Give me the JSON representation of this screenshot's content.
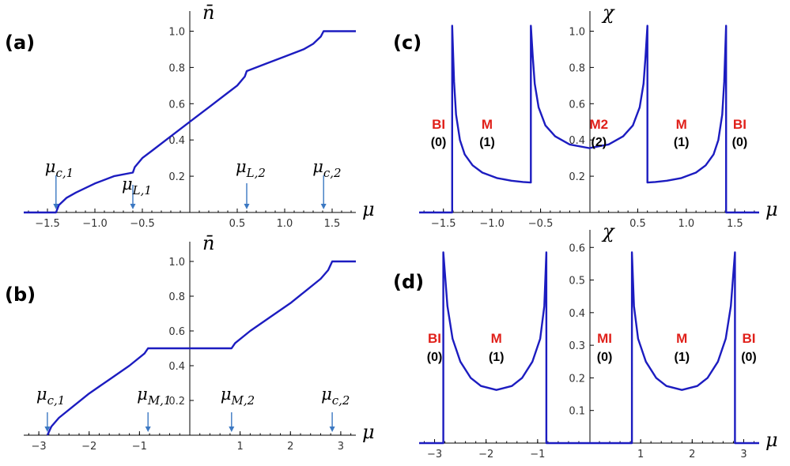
{
  "chart_data": [
    {
      "panel": "(a)",
      "type": "line",
      "xlabel": "μ",
      "ylabel": "n̄",
      "xlim": [
        -1.75,
        1.75
      ],
      "ylim": [
        0,
        1.05
      ],
      "xticks": [
        -1.5,
        -1.0,
        -0.5,
        0.5,
        1.0,
        1.5
      ],
      "xtick_labels": [
        "−1.5",
        "−1.0",
        "−0.5",
        "0.5",
        "1.0",
        "1.5"
      ],
      "yticks": [
        0.2,
        0.4,
        0.6,
        0.8,
        1.0
      ],
      "ytick_labels": [
        "0.2",
        "0.4",
        "0.6",
        "0.8",
        "1.0"
      ],
      "series": [
        {
          "name": "n̄",
          "x": [
            -1.75,
            -1.41,
            -1.38,
            -1.3,
            -1.2,
            -1.0,
            -0.8,
            -0.6,
            -0.58,
            -0.5,
            -0.4,
            -0.2,
            0.0,
            0.2,
            0.4,
            0.5,
            0.58,
            0.6,
            0.8,
            1.0,
            1.2,
            1.3,
            1.38,
            1.41,
            1.75
          ],
          "y": [
            0.0,
            0.0,
            0.04,
            0.08,
            0.11,
            0.16,
            0.2,
            0.22,
            0.25,
            0.3,
            0.34,
            0.42,
            0.5,
            0.58,
            0.66,
            0.7,
            0.75,
            0.78,
            0.82,
            0.86,
            0.9,
            0.93,
            0.97,
            1.0,
            1.0
          ]
        }
      ],
      "annotations": [
        {
          "label": "μ",
          "sub": "c,1",
          "x": -1.41
        },
        {
          "label": "μ",
          "sub": "L,1",
          "x": -0.6
        },
        {
          "label": "μ",
          "sub": "L,2",
          "x": 0.6
        },
        {
          "label": "μ",
          "sub": "c,2",
          "x": 1.41
        }
      ]
    },
    {
      "panel": "(b)",
      "type": "line",
      "xlabel": "μ",
      "ylabel": "n̄",
      "xlim": [
        -3.3,
        3.3
      ],
      "ylim": [
        0,
        1.05
      ],
      "xticks": [
        -3,
        -2,
        -1,
        1,
        2,
        3
      ],
      "xtick_labels": [
        "−3",
        "−2",
        "−1",
        "1",
        "2",
        "3"
      ],
      "yticks": [
        0.2,
        0.4,
        0.6,
        0.8,
        1.0
      ],
      "ytick_labels": [
        "0.2",
        "0.4",
        "0.6",
        "0.8",
        "1.0"
      ],
      "series": [
        {
          "name": "n̄",
          "x": [
            -2.83,
            -2.75,
            -2.6,
            -2.3,
            -2.0,
            -1.6,
            -1.2,
            -0.9,
            -0.83,
            0.83,
            0.9,
            1.2,
            1.6,
            2.0,
            2.3,
            2.6,
            2.75,
            2.83,
            3.3
          ],
          "y": [
            0.0,
            0.05,
            0.1,
            0.17,
            0.24,
            0.32,
            0.4,
            0.47,
            0.5,
            0.5,
            0.53,
            0.6,
            0.68,
            0.76,
            0.83,
            0.9,
            0.95,
            1.0,
            1.0
          ]
        }
      ],
      "annotations": [
        {
          "label": "μ",
          "sub": "c,1",
          "x": -2.83
        },
        {
          "label": "μ",
          "sub": "M,1",
          "x": -0.83
        },
        {
          "label": "μ",
          "sub": "M,2",
          "x": 0.83
        },
        {
          "label": "μ",
          "sub": "c,2",
          "x": 2.83
        }
      ]
    },
    {
      "panel": "(c)",
      "type": "line",
      "xlabel": "μ",
      "ylabel": "χ",
      "xlim": [
        -1.75,
        1.75
      ],
      "ylim": [
        0,
        1.05
      ],
      "xticks": [
        -1.5,
        -1.0,
        -0.5,
        0.5,
        1.0,
        1.5
      ],
      "xtick_labels": [
        "−1.5",
        "−1.0",
        "−0.5",
        "0.5",
        "1.0",
        "1.5"
      ],
      "yticks": [
        0.2,
        0.4,
        0.6,
        0.8,
        1.0
      ],
      "ytick_labels": [
        "0.2",
        "0.4",
        "0.6",
        "0.8",
        "1.0"
      ],
      "series": [
        {
          "name": "χ",
          "x": [
            -1.75,
            -1.41,
            -1.41,
            -1.39,
            -1.37,
            -1.33,
            -1.28,
            -1.2,
            -1.1,
            -0.95,
            -0.8,
            -0.68,
            -0.6,
            -0.6,
            -0.58,
            -0.56,
            -0.52,
            -0.45,
            -0.35,
            -0.2,
            0.0,
            0.2,
            0.35,
            0.45,
            0.52,
            0.56,
            0.58,
            0.6,
            0.6,
            0.68,
            0.8,
            0.95,
            1.1,
            1.2,
            1.28,
            1.33,
            1.37,
            1.39,
            1.41,
            1.41,
            1.75
          ],
          "y": [
            0.0,
            0.0,
            1.03,
            0.72,
            0.54,
            0.4,
            0.32,
            0.26,
            0.22,
            0.19,
            0.175,
            0.168,
            0.165,
            1.03,
            0.86,
            0.71,
            0.58,
            0.48,
            0.42,
            0.375,
            0.355,
            0.375,
            0.42,
            0.48,
            0.58,
            0.71,
            0.86,
            1.03,
            0.165,
            0.168,
            0.175,
            0.19,
            0.22,
            0.26,
            0.32,
            0.4,
            0.54,
            0.72,
            1.03,
            0.0,
            0.0
          ]
        }
      ],
      "regions": [
        {
          "phase": "BI",
          "count": "(0)",
          "x": -1.55
        },
        {
          "phase": "M",
          "count": "(1)",
          "x": -1.05
        },
        {
          "phase": "M2",
          "count": "(2)",
          "x": 0.1
        },
        {
          "phase": "M",
          "count": "(1)",
          "x": 0.95
        },
        {
          "phase": "BI",
          "count": "(0)",
          "x": 1.55
        }
      ]
    },
    {
      "panel": "(d)",
      "type": "line",
      "xlabel": "μ",
      "ylabel": "χ",
      "xlim": [
        -3.3,
        3.3
      ],
      "ylim": [
        0,
        0.62
      ],
      "xticks": [
        -3,
        -2,
        -1,
        1,
        2,
        3
      ],
      "xtick_labels": [
        "−3",
        "−2",
        "−1",
        "1",
        "2",
        "3"
      ],
      "yticks": [
        0.1,
        0.2,
        0.3,
        0.4,
        0.5,
        0.6
      ],
      "ytick_labels": [
        "0.1",
        "0.2",
        "0.3",
        "0.4",
        "0.5",
        "0.6"
      ],
      "series": [
        {
          "name": "χ",
          "x": [
            -3.3,
            -2.83,
            -2.83,
            -2.75,
            -2.65,
            -2.5,
            -2.3,
            -2.1,
            -1.8,
            -1.5,
            -1.3,
            -1.1,
            -0.95,
            -0.87,
            -0.83,
            -0.83,
            0.83,
            0.83,
            0.87,
            0.95,
            1.1,
            1.3,
            1.5,
            1.8,
            2.1,
            2.3,
            2.5,
            2.65,
            2.75,
            2.83,
            2.83,
            3.3
          ],
          "y": [
            0.0,
            0.0,
            0.585,
            0.42,
            0.32,
            0.25,
            0.2,
            0.175,
            0.163,
            0.175,
            0.2,
            0.25,
            0.32,
            0.42,
            0.585,
            0.0,
            0.0,
            0.585,
            0.42,
            0.32,
            0.25,
            0.2,
            0.175,
            0.163,
            0.175,
            0.2,
            0.25,
            0.32,
            0.42,
            0.585,
            0.0,
            0.0
          ]
        }
      ],
      "regions": [
        {
          "phase": "BI",
          "count": "(0)",
          "x": -3.0
        },
        {
          "phase": "M",
          "count": "(1)",
          "x": -1.8
        },
        {
          "phase": "MI",
          "count": "(0)",
          "x": 0.3
        },
        {
          "phase": "M",
          "count": "(1)",
          "x": 1.8
        },
        {
          "phase": "BI",
          "count": "(0)",
          "x": 3.1
        }
      ]
    }
  ]
}
